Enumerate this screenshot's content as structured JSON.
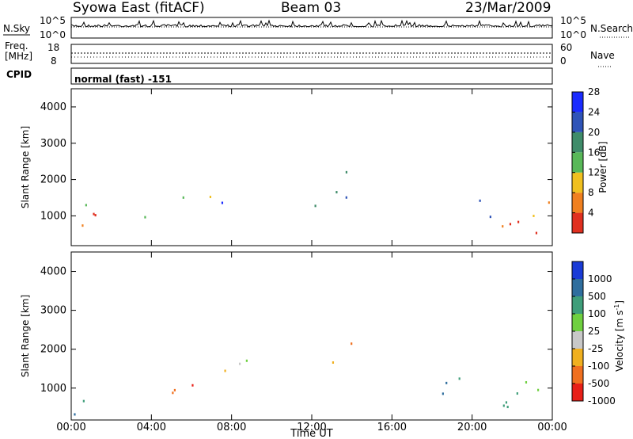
{
  "header": {
    "station": "Syowa East (fitACF)",
    "beam": "Beam 03",
    "date": "23/Mar/2009"
  },
  "top_panels": {
    "nsky_label": "N.Sky",
    "nsearch_label": "N.Search",
    "nsky_ticks": [
      "10^5",
      "10^0"
    ],
    "nsearch_ticks": [
      "10^5",
      "10^0"
    ],
    "freq_label_1": "Freq.",
    "freq_label_2": "[MHz]",
    "freq_ticks": [
      "18",
      "8"
    ],
    "nave_label": "Nave",
    "nave_ticks": [
      "60",
      "0"
    ],
    "cpid_label": "CPID",
    "cpid_value": "normal (fast) -151"
  },
  "chart_data": [
    {
      "type": "heatmap",
      "name": "power",
      "xlabel": "",
      "ylabel": "Slant Range [km]",
      "xlim_hours": [
        0,
        24
      ],
      "ylim_km": [
        180,
        4500
      ],
      "y_ticks": [
        1000,
        2000,
        3000,
        4000
      ],
      "colorbar": {
        "label": "Power [dB]",
        "ticks": [
          "4",
          "8",
          "12",
          "16",
          "20",
          "24",
          "28"
        ],
        "colors": [
          "#1a2bff",
          "#2f54b8",
          "#3f8c6a",
          "#58b858",
          "#f0c020",
          "#f08020",
          "#e03020"
        ]
      },
      "echo_regions": [
        {
          "t": [
            0.0,
            1.3
          ],
          "r": [
            200,
            1100
          ],
          "level": 6,
          "density": 0.9
        },
        {
          "t": [
            0.5,
            1.2
          ],
          "r": [
            1300,
            2300
          ],
          "level": 2,
          "density": 0.4
        },
        {
          "t": [
            3.5,
            4.8
          ],
          "r": [
            900,
            1300
          ],
          "level": 3,
          "density": 0.7
        },
        {
          "t": [
            5.0,
            7.5
          ],
          "r": [
            1400,
            1900
          ],
          "level": 4,
          "density": 0.6
        },
        {
          "t": [
            7.0,
            13.8
          ],
          "r": [
            1300,
            1800
          ],
          "level": 1,
          "density": 0.5
        },
        {
          "t": [
            12.8,
            14.5
          ],
          "r": [
            1900,
            2300
          ],
          "level": 2,
          "density": 0.5
        },
        {
          "t": [
            18.5,
            21.5
          ],
          "r": [
            1000,
            1600
          ],
          "level": 2,
          "density": 0.5
        },
        {
          "t": [
            21.0,
            24.0
          ],
          "r": [
            400,
            1400
          ],
          "level": 5,
          "density": 0.8
        }
      ]
    },
    {
      "type": "heatmap",
      "name": "velocity",
      "xlabel": "Time UT",
      "ylabel": "Slant Range [km]",
      "x_ticks": [
        "00:00",
        "04:00",
        "08:00",
        "12:00",
        "16:00",
        "20:00",
        "00:00"
      ],
      "xlim_hours": [
        0,
        24
      ],
      "ylim_km": [
        180,
        4500
      ],
      "y_ticks": [
        1000,
        2000,
        3000,
        4000
      ],
      "colorbar": {
        "label": "Velocity [m s",
        "label_sup": "-1",
        "ticks": [
          "1000",
          "500",
          "100",
          "25",
          "-25",
          "-100",
          "-500",
          "-1000"
        ],
        "colors": [
          "#1a3bd6",
          "#2f6e9e",
          "#3f9e7a",
          "#6fd040",
          "#c8c8c8",
          "#f0b020",
          "#f07020",
          "#e82018"
        ]
      },
      "echo_regions": [
        {
          "t": [
            0.0,
            1.3
          ],
          "r": [
            200,
            1100
          ],
          "level": 2,
          "density": 0.8
        },
        {
          "t": [
            3.5,
            6.5
          ],
          "r": [
            900,
            1500
          ],
          "level": 6,
          "density": 0.7
        },
        {
          "t": [
            6.0,
            8.0
          ],
          "r": [
            1300,
            1700
          ],
          "level": 6,
          "density": 0.6
        },
        {
          "t": [
            8.0,
            13.5
          ],
          "r": [
            1400,
            1800
          ],
          "level": 4,
          "density": 0.5
        },
        {
          "t": [
            12.8,
            14.5
          ],
          "r": [
            1900,
            2300
          ],
          "level": 5,
          "density": 0.5
        },
        {
          "t": [
            18.5,
            21.5
          ],
          "r": [
            800,
            1500
          ],
          "level": 2,
          "density": 0.5
        },
        {
          "t": [
            21.0,
            24.0
          ],
          "r": [
            300,
            1300
          ],
          "level": 2,
          "density": 0.8
        }
      ]
    }
  ]
}
